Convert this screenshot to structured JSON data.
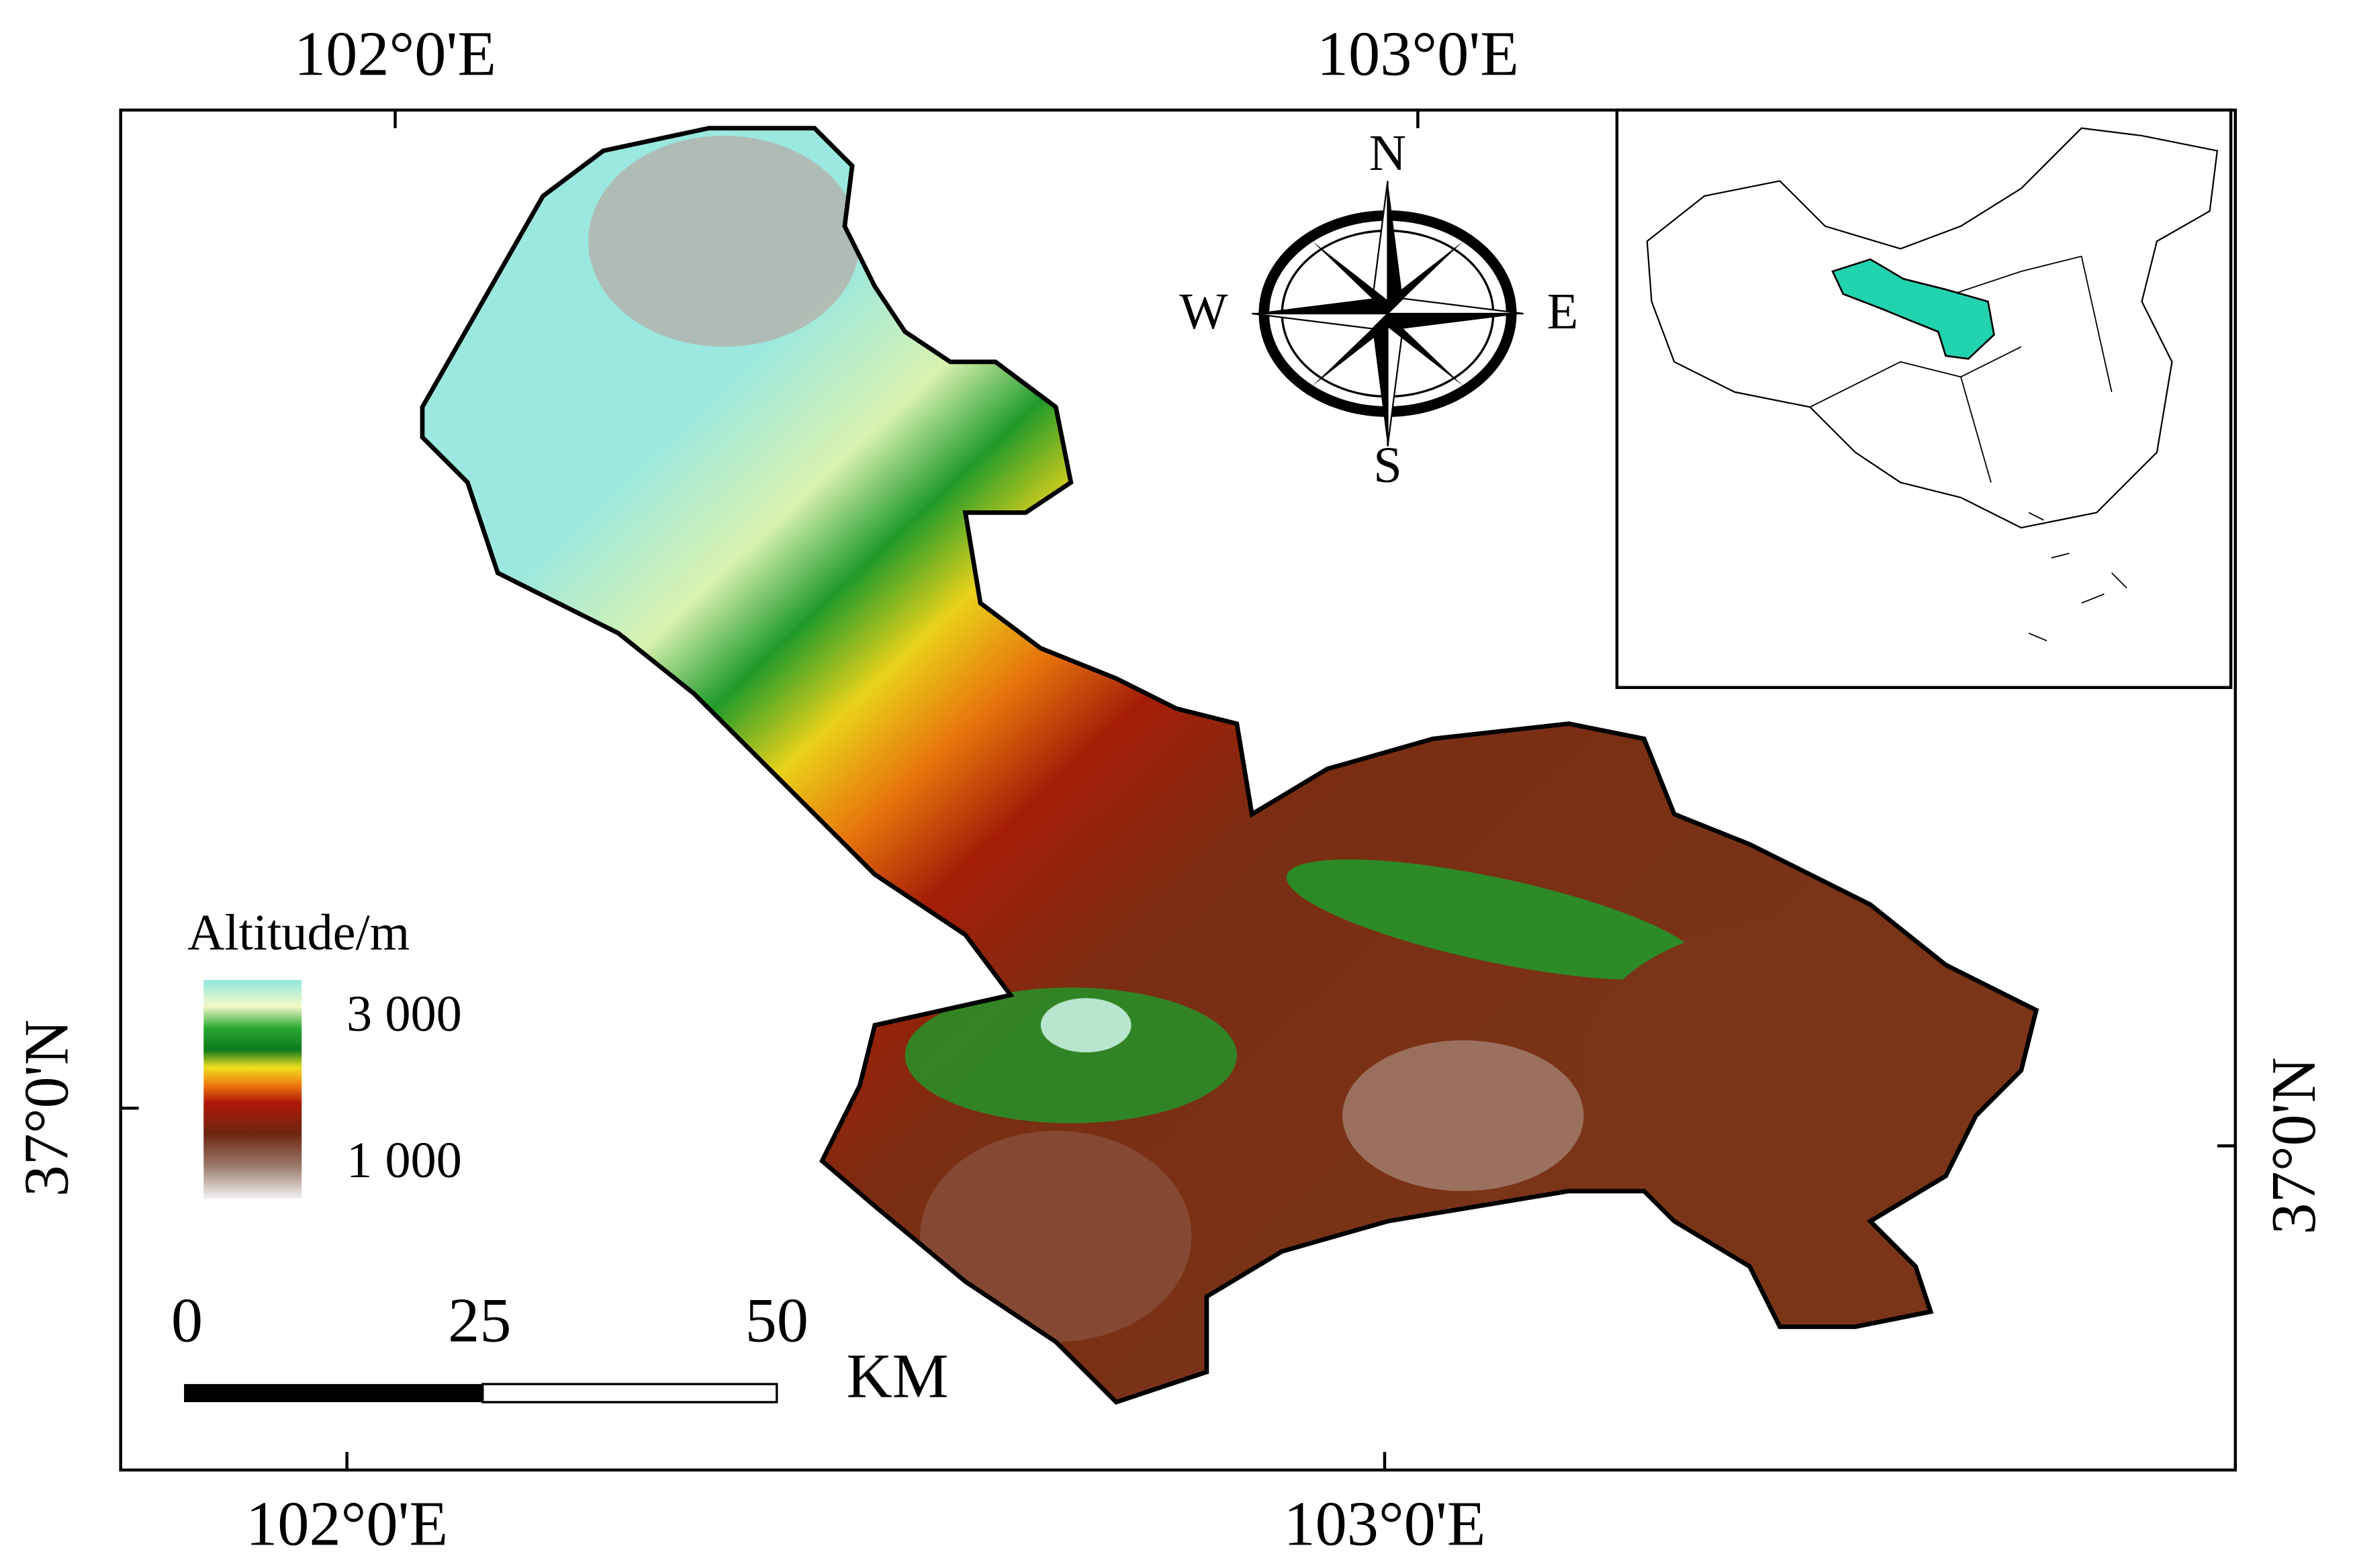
{
  "graticule": {
    "top": [
      "102°0'E",
      "103°0'E"
    ],
    "bottom": [
      "102°0'E",
      "103°0'E"
    ],
    "left": [
      "37°0'N"
    ],
    "right": [
      "37°0'N"
    ]
  },
  "legend": {
    "title": "Altitude/m",
    "labels": [
      "3 000",
      "1 000"
    ]
  },
  "scale_bar": {
    "labels": [
      "0",
      "25",
      "50"
    ],
    "unit": "KM"
  },
  "compass": {
    "n": "N",
    "e": "E",
    "s": "S",
    "w": "W"
  }
}
